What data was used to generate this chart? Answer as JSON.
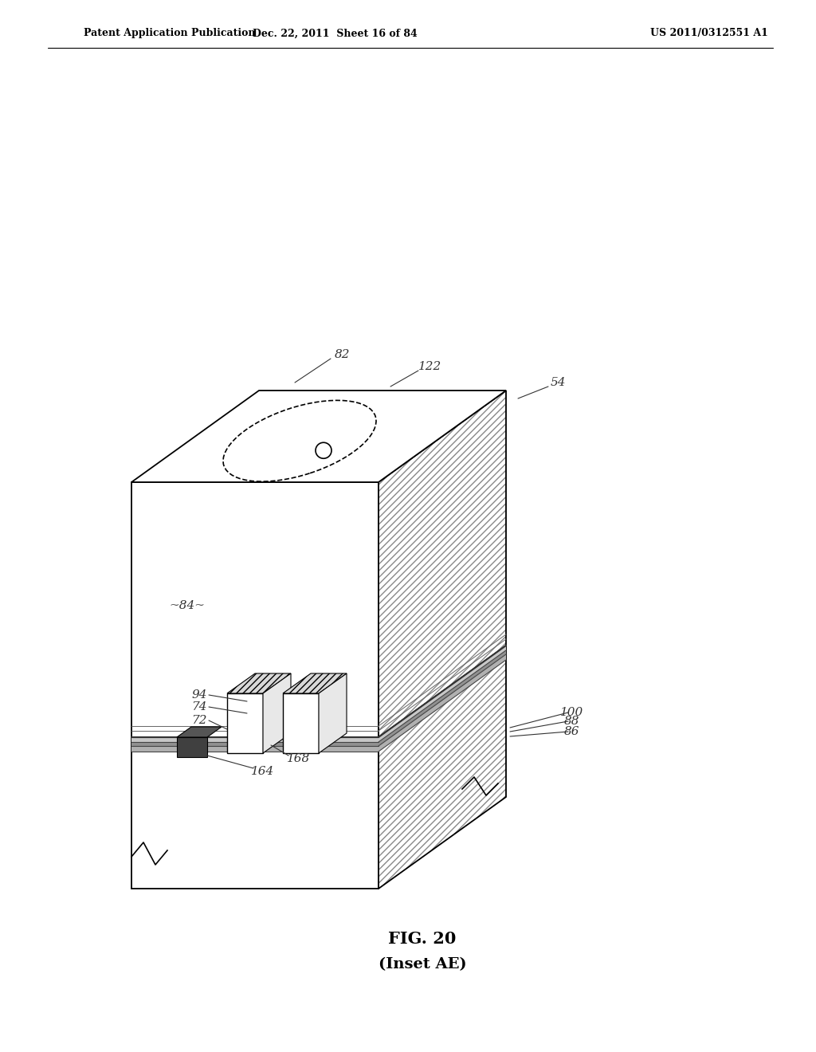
{
  "header_left": "Patent Application Publication",
  "header_mid": "Dec. 22, 2011  Sheet 16 of 84",
  "header_right": "US 2011/0312551 A1",
  "caption_line1": "FIG. 20",
  "caption_line2": "(Inset AE)",
  "bg_color": "#ffffff",
  "line_color": "#000000"
}
